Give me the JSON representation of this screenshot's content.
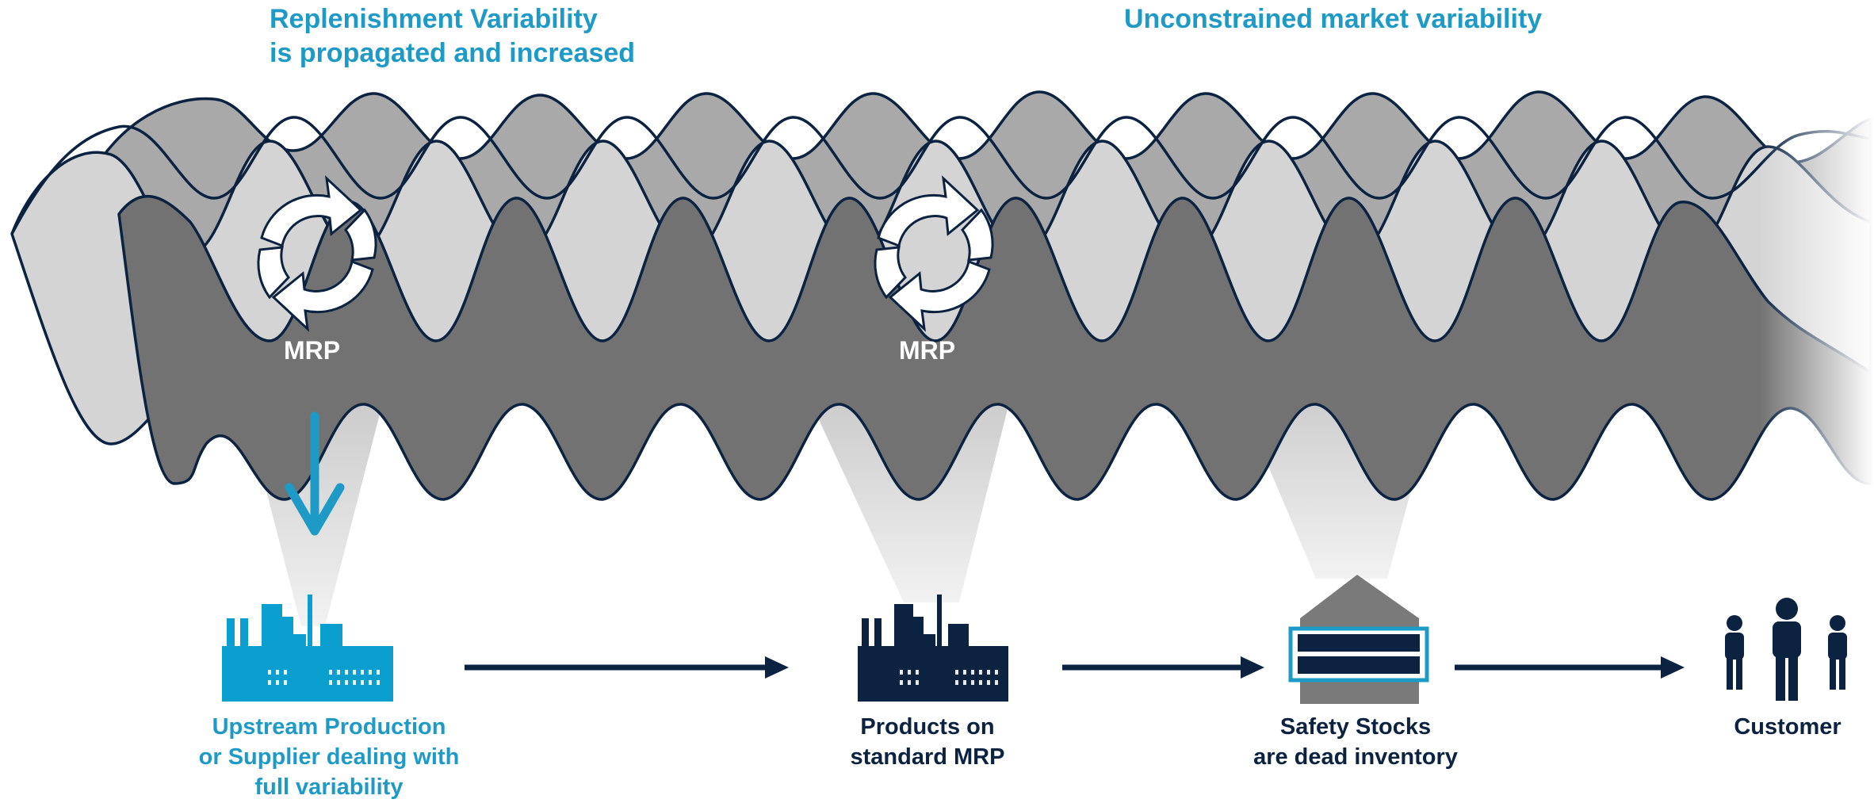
{
  "headlines": {
    "left": "Replenishment Variability\nis propagated and increased",
    "right": "Unconstrained market variability"
  },
  "mrp_badges": [
    {
      "label": "MRP"
    },
    {
      "label": "MRP"
    }
  ],
  "stages": [
    {
      "caption": "Upstream Production\nor Supplier dealing with\nfull variability",
      "icon": "factory-icon",
      "color": "#0b9fd0"
    },
    {
      "caption": "Products on\nstandard MRP",
      "icon": "factory-icon",
      "color": "#0b2241"
    },
    {
      "caption": "Safety Stocks\nare dead inventory",
      "icon": "warehouse-icon",
      "color": "#0b2241"
    },
    {
      "caption": "Customer",
      "icon": "people-icon",
      "color": "#0b2241"
    }
  ],
  "colors": {
    "accent_blue": "#1e9ac7",
    "navy": "#0b2241",
    "wave_light": "#d0d0d0",
    "wave_mid": "#aaaaaa",
    "wave_dark": "#707070"
  }
}
